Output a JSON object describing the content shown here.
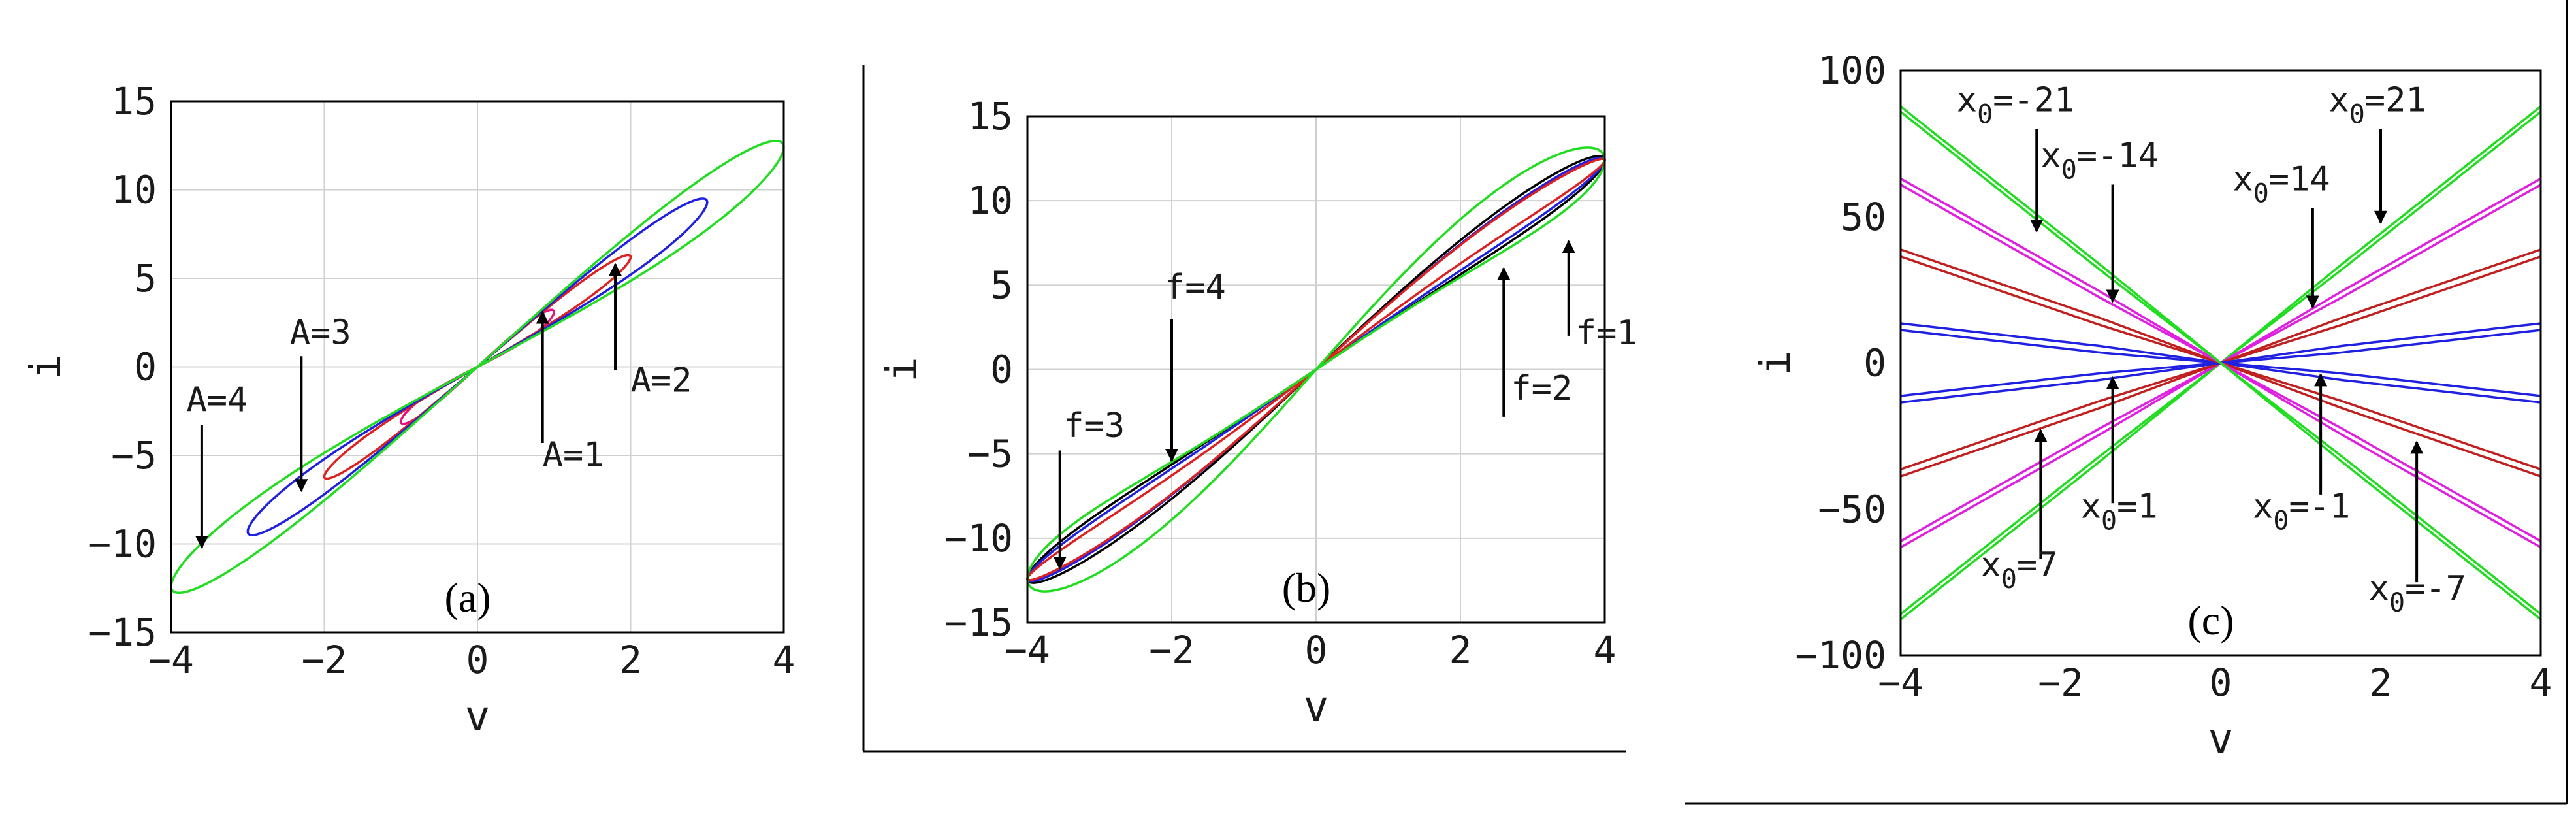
{
  "chart_data": [
    {
      "id": "a",
      "type": "line",
      "panel_label": "(a)",
      "xlabel": "v",
      "ylabel": "i",
      "xlim": [
        -4,
        4
      ],
      "ylim": [
        -15,
        15
      ],
      "xticks": [
        -4,
        -2,
        0,
        2,
        4
      ],
      "yticks": [
        -15,
        -10,
        -5,
        0,
        5,
        10,
        15
      ],
      "grid": true,
      "series": [
        {
          "label": "A=1",
          "color": "#e8107a",
          "amplitude": 1,
          "peak_current": 3.1,
          "loop_width": 0.45
        },
        {
          "label": "A=2",
          "color": "#dd2020",
          "amplitude": 2,
          "peak_current": 6.2,
          "loop_width": 0.6
        },
        {
          "label": "A=3",
          "color": "#2020e0",
          "amplitude": 3,
          "peak_current": 9.3,
          "loop_width": 1.0
        },
        {
          "label": "A=4",
          "color": "#20dd20",
          "amplitude": 4,
          "peak_current": 12.4,
          "loop_width": 1.55
        }
      ],
      "annotations": [
        {
          "text": "A=4",
          "text_at": [
            -3.8,
            -2.5
          ],
          "arrow_from": [
            -3.6,
            -3.3
          ],
          "arrow_to": [
            -3.6,
            -10.2
          ]
        },
        {
          "text": "A=3",
          "text_at": [
            -2.45,
            1.3
          ],
          "arrow_from": [
            -2.3,
            0.6
          ],
          "arrow_to": [
            -2.3,
            -7.0
          ]
        },
        {
          "text": "A=1",
          "text_at": [
            0.85,
            -5.6
          ],
          "arrow_from": [
            0.85,
            -4.3
          ],
          "arrow_to": [
            0.85,
            3.1
          ]
        },
        {
          "text": "A=2",
          "text_at": [
            2.0,
            -1.4
          ],
          "arrow_from": [
            1.8,
            -0.2
          ],
          "arrow_to": [
            1.8,
            5.8
          ]
        }
      ]
    },
    {
      "id": "b",
      "type": "line",
      "panel_label": "(b)",
      "xlabel": "v",
      "ylabel": "i",
      "xlim": [
        -4,
        4
      ],
      "ylim": [
        -15,
        15
      ],
      "xticks": [
        -4,
        -2,
        0,
        2,
        4
      ],
      "yticks": [
        -15,
        -10,
        -5,
        0,
        5,
        10,
        15
      ],
      "grid": true,
      "series": [
        {
          "label": "f=1",
          "color": "#000000",
          "amplitude": 4,
          "peak_current": 12.4,
          "loop_width": 1.3
        },
        {
          "label": "f=2",
          "color": "#2020e0",
          "amplitude": 4,
          "peak_current": 12.4,
          "loop_width": 1.0
        },
        {
          "label": "f=3",
          "color": "#dd2020",
          "amplitude": 4,
          "peak_current": 12.4,
          "loop_width": 0.7
        },
        {
          "label": "f=4",
          "color": "#20dd20",
          "amplitude": 4,
          "peak_current": 12.4,
          "loop_width": 2.2
        }
      ],
      "annotations": [
        {
          "text": "f=4",
          "text_at": [
            -2.1,
            4.2
          ],
          "arrow_from": [
            -2.0,
            3.0
          ],
          "arrow_to": [
            -2.0,
            -5.4
          ]
        },
        {
          "text": "f=3",
          "text_at": [
            -3.5,
            -4.0
          ],
          "arrow_from": [
            -3.55,
            -4.8
          ],
          "arrow_to": [
            -3.55,
            -11.8
          ]
        },
        {
          "text": "f=2",
          "text_at": [
            2.7,
            -1.8
          ],
          "arrow_from": [
            2.6,
            -2.8
          ],
          "arrow_to": [
            2.6,
            6.0
          ]
        },
        {
          "text": "f=1",
          "text_at": [
            3.6,
            1.5
          ],
          "arrow_from": [
            3.5,
            2.0
          ],
          "arrow_to": [
            3.5,
            7.6
          ]
        }
      ]
    },
    {
      "id": "c",
      "type": "line",
      "panel_label": "(c)",
      "xlabel": "v",
      "ylabel": "i",
      "xlim": [
        -4,
        4
      ],
      "ylim": [
        -100,
        100
      ],
      "xticks": [
        -4,
        -2,
        0,
        2,
        4
      ],
      "yticks": [
        -100,
        -50,
        0,
        50,
        100
      ],
      "grid": false,
      "series": [
        {
          "label": "x0=21",
          "color": "#20dd20",
          "slope": 21.7,
          "gap": 1.2
        },
        {
          "label": "x0=14",
          "color": "#e020e0",
          "slope": 15.5,
          "gap": 1.4
        },
        {
          "label": "x0=7",
          "color": "#c02020",
          "slope": 9.4,
          "gap": 1.6
        },
        {
          "label": "x0=1",
          "color": "#2020e0",
          "slope": 3.1,
          "gap": 1.5
        },
        {
          "label": "x0=-1",
          "color": "#2020e0",
          "slope": -3.1,
          "gap": 1.5
        },
        {
          "label": "x0=-7",
          "color": "#c02020",
          "slope": -9.4,
          "gap": 1.6
        },
        {
          "label": "x0=-14",
          "color": "#e020e0",
          "slope": -15.5,
          "gap": 1.4
        },
        {
          "label": "x0=-21",
          "color": "#20dd20",
          "slope": -21.7,
          "gap": 1.2
        }
      ],
      "annotations": [
        {
          "text": "x0=-21",
          "sub_main": "x",
          "sub_sub": "0",
          "sub_tail": "=-21",
          "text_at": [
            -3.3,
            86
          ],
          "arrow_from": [
            -2.3,
            80
          ],
          "arrow_to": [
            -2.3,
            45
          ]
        },
        {
          "text": "x0=-14",
          "sub_main": "x",
          "sub_sub": "0",
          "sub_tail": "=-14",
          "text_at": [
            -2.25,
            67
          ],
          "arrow_from": [
            -1.35,
            61
          ],
          "arrow_to": [
            -1.35,
            21
          ]
        },
        {
          "text": "x0=21",
          "sub_main": "x",
          "sub_sub": "0",
          "sub_tail": "=21",
          "text_at": [
            1.35,
            86
          ],
          "arrow_from": [
            2.0,
            80
          ],
          "arrow_to": [
            2.0,
            48
          ]
        },
        {
          "text": "x0=14",
          "sub_main": "x",
          "sub_sub": "0",
          "sub_tail": "=14",
          "text_at": [
            0.15,
            59
          ],
          "arrow_from": [
            1.15,
            53
          ],
          "arrow_to": [
            1.15,
            19
          ]
        },
        {
          "text": "x0=1",
          "sub_main": "x",
          "sub_sub": "0",
          "sub_tail": "=1",
          "text_at": [
            -1.75,
            -53
          ],
          "arrow_from": [
            -1.35,
            -48
          ],
          "arrow_to": [
            -1.35,
            -5
          ]
        },
        {
          "text": "x0=-1",
          "sub_main": "x",
          "sub_sub": "0",
          "sub_tail": "=-1",
          "text_at": [
            0.4,
            -53
          ],
          "arrow_from": [
            1.25,
            -45
          ],
          "arrow_to": [
            1.25,
            -4
          ]
        },
        {
          "text": "x0=7",
          "sub_main": "x",
          "sub_sub": "0",
          "sub_tail": "=7",
          "text_at": [
            -3.0,
            -73
          ],
          "arrow_from": [
            -2.25,
            -67
          ],
          "arrow_to": [
            -2.25,
            -23
          ]
        },
        {
          "text": "x0=-7",
          "sub_main": "x",
          "sub_sub": "0",
          "sub_tail": "=-7",
          "text_at": [
            1.85,
            -81
          ],
          "arrow_from": [
            2.45,
            -75
          ],
          "arrow_to": [
            2.45,
            -27
          ]
        }
      ]
    }
  ]
}
